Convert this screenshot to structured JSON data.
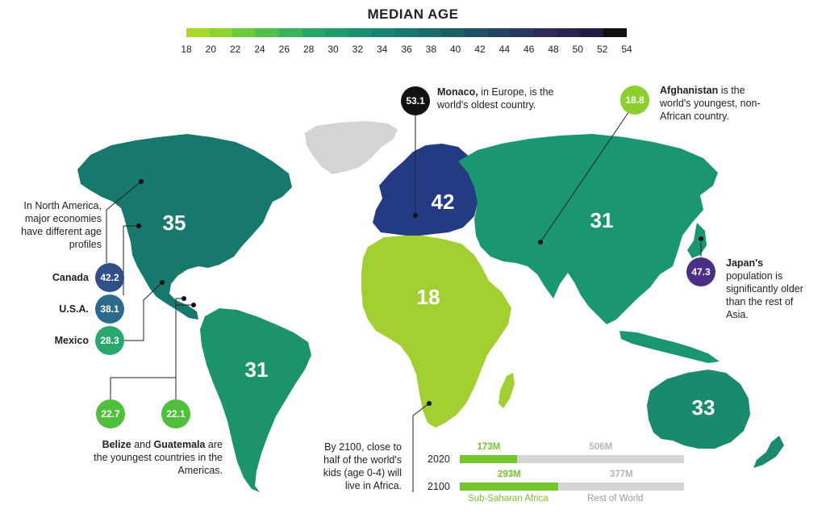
{
  "title": "MEDIAN AGE",
  "scale": {
    "ticks": [
      "18",
      "20",
      "22",
      "24",
      "26",
      "28",
      "30",
      "32",
      "34",
      "36",
      "38",
      "40",
      "42",
      "44",
      "46",
      "48",
      "50",
      "52",
      "54"
    ],
    "colors": [
      "#a8d92b",
      "#8bd32f",
      "#6dcb3b",
      "#4fc14a",
      "#3ab35a",
      "#27a566",
      "#1f9a6c",
      "#18906f",
      "#178470",
      "#16786f",
      "#196b6c",
      "#1c5e68",
      "#205065",
      "#244262",
      "#28375d",
      "#2b2c57",
      "#2b2250",
      "#231a44",
      "#111111"
    ]
  },
  "map": {
    "regions": [
      {
        "name": "north-america",
        "value": "35",
        "color": "#17786e"
      },
      {
        "name": "south-america",
        "value": "31",
        "color": "#1c9368"
      },
      {
        "name": "europe",
        "value": "42",
        "color": "#243b84"
      },
      {
        "name": "africa",
        "value": "18",
        "color": "#a2cf31"
      },
      {
        "name": "asia",
        "value": "31",
        "color": "#1a9670"
      },
      {
        "name": "oceania",
        "value": "33",
        "color": "#198a6e"
      }
    ],
    "greenland_color": "#d4d4d4"
  },
  "annotations": {
    "monaco": {
      "value": "53.1",
      "bold": "Monaco,",
      "text": " in Europe, is the world's oldest country.",
      "color": "#111111"
    },
    "afghanistan": {
      "value": "18.8",
      "bold": "Afghanistan",
      "text": " is the world's youngest, non-African country.",
      "color": "#8ccf2e"
    },
    "japan": {
      "value": "47.3",
      "bold": "Japan's",
      "text": " population is significantly older than the rest of Asia.",
      "color": "#4b2f86"
    },
    "north_america": {
      "text": "In North America, major economies have different age profiles"
    },
    "canada": {
      "label": "Canada",
      "value": "42.2",
      "color": "#2f4f86"
    },
    "usa": {
      "label": "U.S.A.",
      "value": "38.1",
      "color": "#2b6a8c"
    },
    "mexico": {
      "label": "Mexico",
      "value": "28.3",
      "color": "#28a86e"
    },
    "belize": {
      "value": "22.7",
      "color": "#4fbf3c"
    },
    "guatemala": {
      "value": "22.1",
      "color": "#4fbf3c"
    },
    "americas_young": {
      "bold1": "Belize",
      "mid": " and ",
      "bold2": "Guatemala",
      "text": " are the youngest countries in the Americas."
    },
    "africa_kids": {
      "text": "By 2100, close to half of the world's kids (age 0-4) will live in Africa."
    }
  },
  "bars": {
    "rows": [
      {
        "year": "2020",
        "ssa_label": "173M",
        "row_label": "506M",
        "ssa_value": 173,
        "row_value": 506
      },
      {
        "year": "2100",
        "ssa_label": "293M",
        "row_label": "377M",
        "ssa_value": 293,
        "row_value": 377
      }
    ],
    "legend": {
      "ssa": "Sub-Saharan Africa",
      "rest": "Rest of World"
    },
    "ssa_color": "#74c62e",
    "rest_color": "#d6d6d6"
  }
}
